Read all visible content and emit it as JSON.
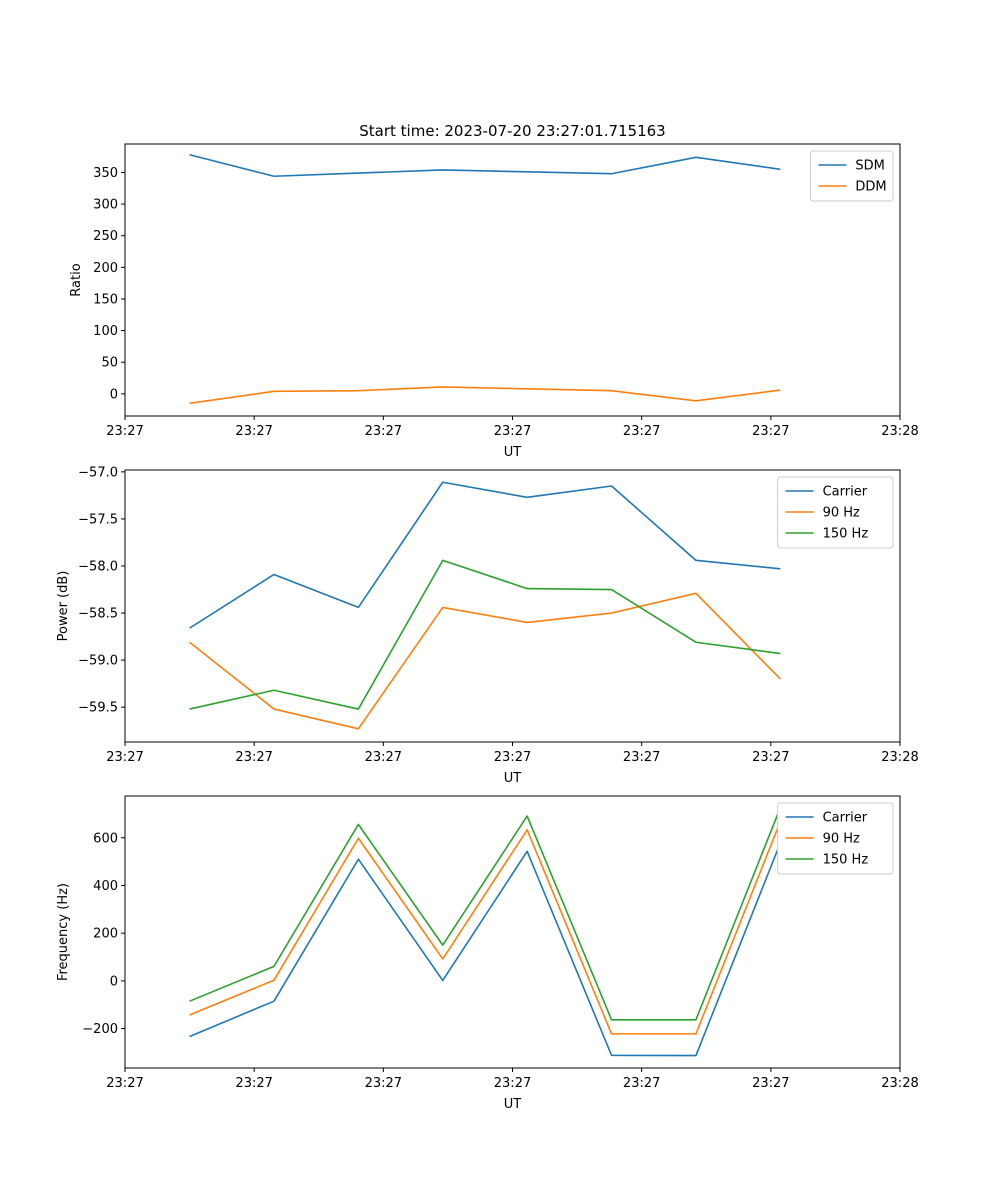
{
  "figure_title": "Start time: 2023-07-20 23:27:01.715163",
  "chart_data": [
    {
      "type": "line",
      "title": "Start time: 2023-07-20 23:27:01.715163",
      "xlabel": "UT",
      "ylabel": "Ratio",
      "xlim": [
        0,
        9
      ],
      "ylim": [
        -35,
        395
      ],
      "xticks": [
        0,
        1.5,
        3,
        4.5,
        6,
        7.5,
        9
      ],
      "xtick_labels": [
        "23:27",
        "23:27",
        "23:27",
        "23:27",
        "23:27",
        "23:27",
        "23:28"
      ],
      "yticks": [
        0,
        50,
        100,
        150,
        200,
        250,
        300,
        350
      ],
      "ytick_labels": [
        "0",
        "50",
        "100",
        "150",
        "200",
        "250",
        "300",
        "350"
      ],
      "legend": "top-right",
      "x": [
        0.75,
        1.73,
        2.71,
        3.69,
        4.67,
        5.65,
        6.63,
        7.61
      ],
      "series": [
        {
          "name": "SDM",
          "color": "#1f77b4",
          "values": [
            378,
            344,
            349,
            354,
            351,
            348,
            374,
            355
          ]
        },
        {
          "name": "DDM",
          "color": "#ff7f0e",
          "values": [
            -15,
            4,
            5,
            11,
            8,
            5,
            -11,
            6
          ]
        }
      ]
    },
    {
      "type": "line",
      "title": "",
      "xlabel": "UT",
      "ylabel": "Power (dB)",
      "xlim": [
        0,
        9
      ],
      "ylim": [
        -59.87,
        -56.98
      ],
      "xticks": [
        0,
        1.5,
        3,
        4.5,
        6,
        7.5,
        9
      ],
      "xtick_labels": [
        "23:27",
        "23:27",
        "23:27",
        "23:27",
        "23:27",
        "23:27",
        "23:28"
      ],
      "yticks": [
        -59.5,
        -59.0,
        -58.5,
        -58.0,
        -57.5,
        -57.0
      ],
      "ytick_labels": [
        "−59.5",
        "−59.0",
        "−58.5",
        "−58.0",
        "−57.5",
        "−57.0"
      ],
      "legend": "top-right",
      "x": [
        0.75,
        1.73,
        2.71,
        3.69,
        4.67,
        5.65,
        6.63,
        7.61
      ],
      "series": [
        {
          "name": "Carrier",
          "color": "#1f77b4",
          "values": [
            -58.66,
            -58.09,
            -58.44,
            -57.11,
            -57.27,
            -57.15,
            -57.94,
            -58.03
          ]
        },
        {
          "name": "90 Hz",
          "color": "#ff7f0e",
          "values": [
            -58.81,
            -59.52,
            -59.73,
            -58.44,
            -58.6,
            -58.5,
            -58.29,
            -59.2
          ]
        },
        {
          "name": "150 Hz",
          "color": "#2ca02c",
          "values": [
            -59.52,
            -59.32,
            -59.52,
            -57.94,
            -58.24,
            -58.25,
            -58.81,
            -58.93
          ]
        }
      ]
    },
    {
      "type": "line",
      "title": "",
      "xlabel": "UT",
      "ylabel": "Frequency (Hz)",
      "xlim": [
        0,
        9
      ],
      "ylim": [
        -365,
        775
      ],
      "xticks": [
        0,
        1.5,
        3,
        4.5,
        6,
        7.5,
        9
      ],
      "xtick_labels": [
        "23:27",
        "23:27",
        "23:27",
        "23:27",
        "23:27",
        "23:27",
        "23:28"
      ],
      "yticks": [
        -200,
        0,
        200,
        400,
        600
      ],
      "ytick_labels": [
        "−200",
        "0",
        "200",
        "400",
        "600"
      ],
      "legend": "top-right",
      "x": [
        0.75,
        1.73,
        2.71,
        3.69,
        4.67,
        5.65,
        6.63,
        7.61
      ],
      "series": [
        {
          "name": "Carrier",
          "color": "#1f77b4",
          "values": [
            -233,
            -85,
            510,
            2,
            543,
            -312,
            -313,
            578
          ]
        },
        {
          "name": "90 Hz",
          "color": "#ff7f0e",
          "values": [
            -143,
            3,
            598,
            92,
            633,
            -222,
            -222,
            668
          ]
        },
        {
          "name": "150 Hz",
          "color": "#2ca02c",
          "values": [
            -85,
            61,
            656,
            150,
            691,
            -163,
            -163,
            726
          ]
        }
      ]
    }
  ]
}
